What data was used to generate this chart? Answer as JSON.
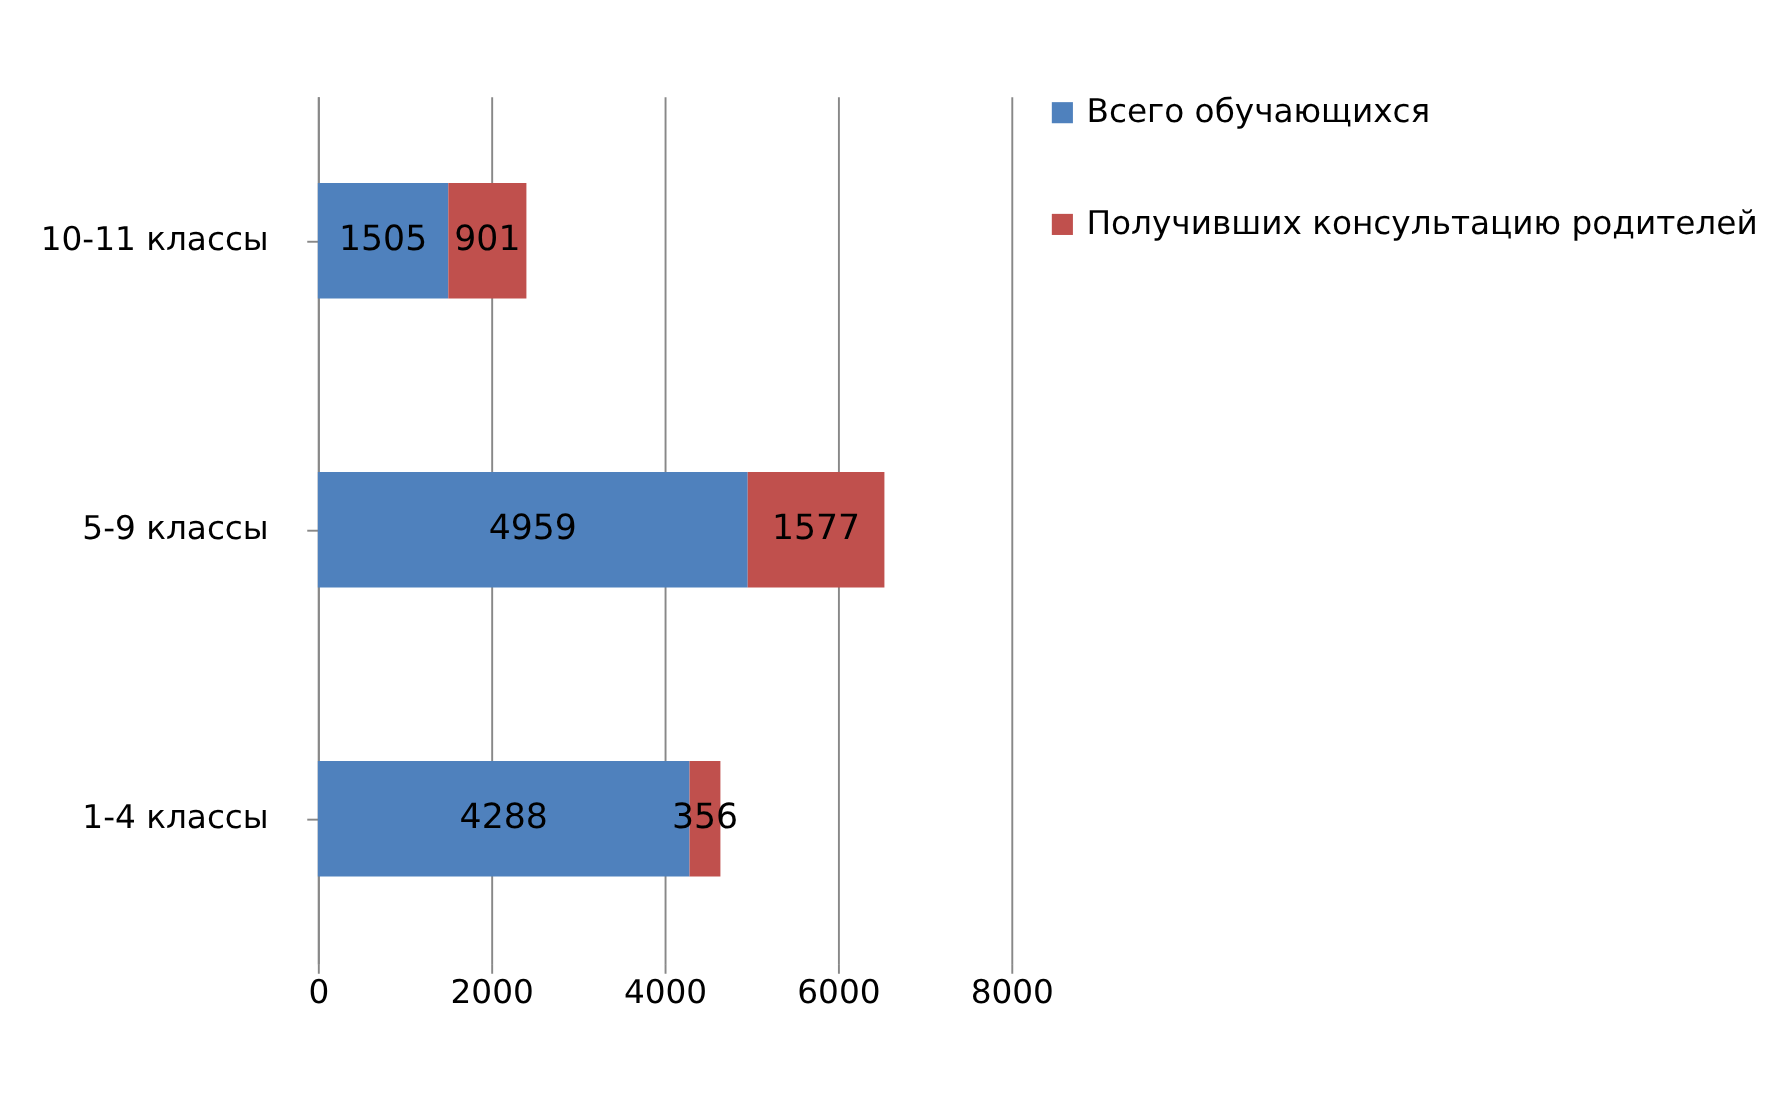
{
  "chart_data": {
    "type": "bar",
    "orientation": "horizontal",
    "stacked": true,
    "categories": [
      "10-11 классы",
      "5-9 классы",
      "1-4 классы"
    ],
    "series": [
      {
        "name": "Всего обучающихся",
        "color": "#4f81bd",
        "values": [
          1505,
          4959,
          4288
        ]
      },
      {
        "name": "Получивших консультацию родителей",
        "color": "#c0504d",
        "values": [
          901,
          1577,
          356
        ]
      }
    ],
    "xlim": [
      0,
      8000
    ],
    "xticks": [
      0,
      2000,
      4000,
      6000,
      8000
    ],
    "grid": "x",
    "legend": "right",
    "data_labels": true
  }
}
